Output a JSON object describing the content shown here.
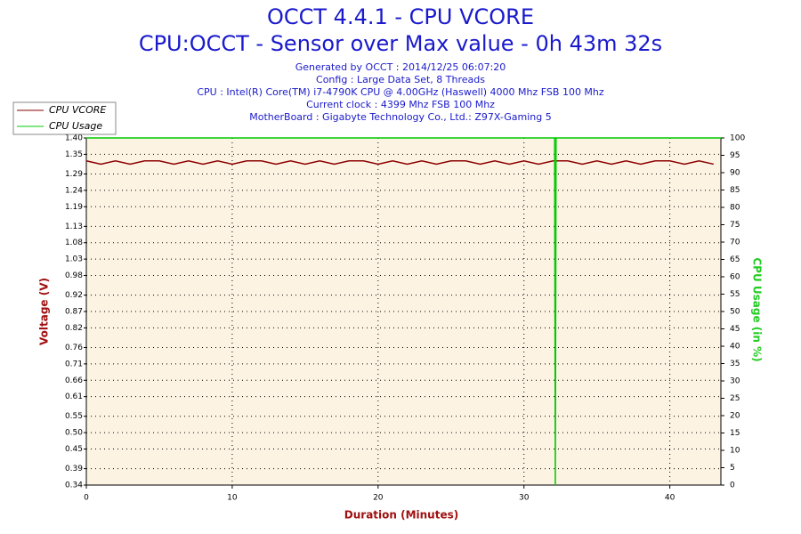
{
  "chart_data": {
    "type": "line",
    "title": "OCCT 4.4.1 - CPU VCORE",
    "subtitle": "CPU:OCCT - Sensor over Max value - 0h 43m 32s",
    "info": [
      "Generated by OCCT : 2014/12/25 06:07:20",
      "Config : Large Data Set, 8 Threads",
      "CPU : Intel(R) Core(TM) i7-4790K CPU @ 4.00GHz (Haswell) 4000 Mhz FSB 100 Mhz",
      "Current clock : 4399 Mhz FSB 100 Mhz",
      "MotherBoard : Gigabyte Technology Co., Ltd.: Z97X-Gaming 5"
    ],
    "x_label": "Duration (Minutes)",
    "y_label": "Voltage (V)",
    "y2_label": "CPU Usage (in %)",
    "xlim": [
      0,
      43.5
    ],
    "xticks": [
      0,
      10,
      20,
      30,
      40
    ],
    "ylim": [
      0.34,
      1.4
    ],
    "yticks": [
      0.34,
      0.39,
      0.45,
      {
        "value": 0.5,
        "label": "0.50"
      },
      0.55,
      0.61,
      0.66,
      0.71,
      0.76,
      0.82,
      0.87,
      0.92,
      0.98,
      1.03,
      1.08,
      1.13,
      1.19,
      1.24,
      1.29,
      1.35,
      {
        "value": 1.4,
        "label": "1.40"
      }
    ],
    "y2lim": [
      0,
      100
    ],
    "y2ticks": [
      0,
      5,
      10,
      15,
      20,
      25,
      30,
      35,
      40,
      45,
      50,
      55,
      60,
      65,
      70,
      75,
      80,
      85,
      90,
      95,
      100
    ],
    "grid": true,
    "legend": "top-left",
    "series": [
      {
        "name": "CPU VCORE",
        "color": "#8b0000",
        "x": [
          0,
          1,
          2,
          3,
          4,
          5,
          6,
          7,
          8,
          9,
          10,
          11,
          12,
          13,
          14,
          15,
          16,
          17,
          18,
          19,
          20,
          21,
          22,
          23,
          24,
          25,
          26,
          27,
          28,
          29,
          30,
          31,
          32,
          33,
          34,
          35,
          36,
          37,
          38,
          39,
          40,
          41,
          42,
          43
        ],
        "values": [
          1.33,
          1.32,
          1.33,
          1.32,
          1.33,
          1.33,
          1.32,
          1.33,
          1.32,
          1.33,
          1.32,
          1.33,
          1.33,
          1.32,
          1.33,
          1.32,
          1.33,
          1.32,
          1.33,
          1.33,
          1.32,
          1.33,
          1.32,
          1.33,
          1.32,
          1.33,
          1.33,
          1.32,
          1.33,
          1.32,
          1.33,
          1.32,
          1.33,
          1.33,
          1.32,
          1.33,
          1.32,
          1.33,
          1.32,
          1.33,
          1.33,
          1.32,
          1.33,
          1.32
        ]
      },
      {
        "name": "CPU Usage",
        "color": "#00cc00",
        "axis": "y2",
        "x": [
          0,
          32.1,
          32.15,
          32.2,
          43.5
        ],
        "values": [
          100,
          100,
          0,
          100,
          100
        ]
      }
    ]
  }
}
